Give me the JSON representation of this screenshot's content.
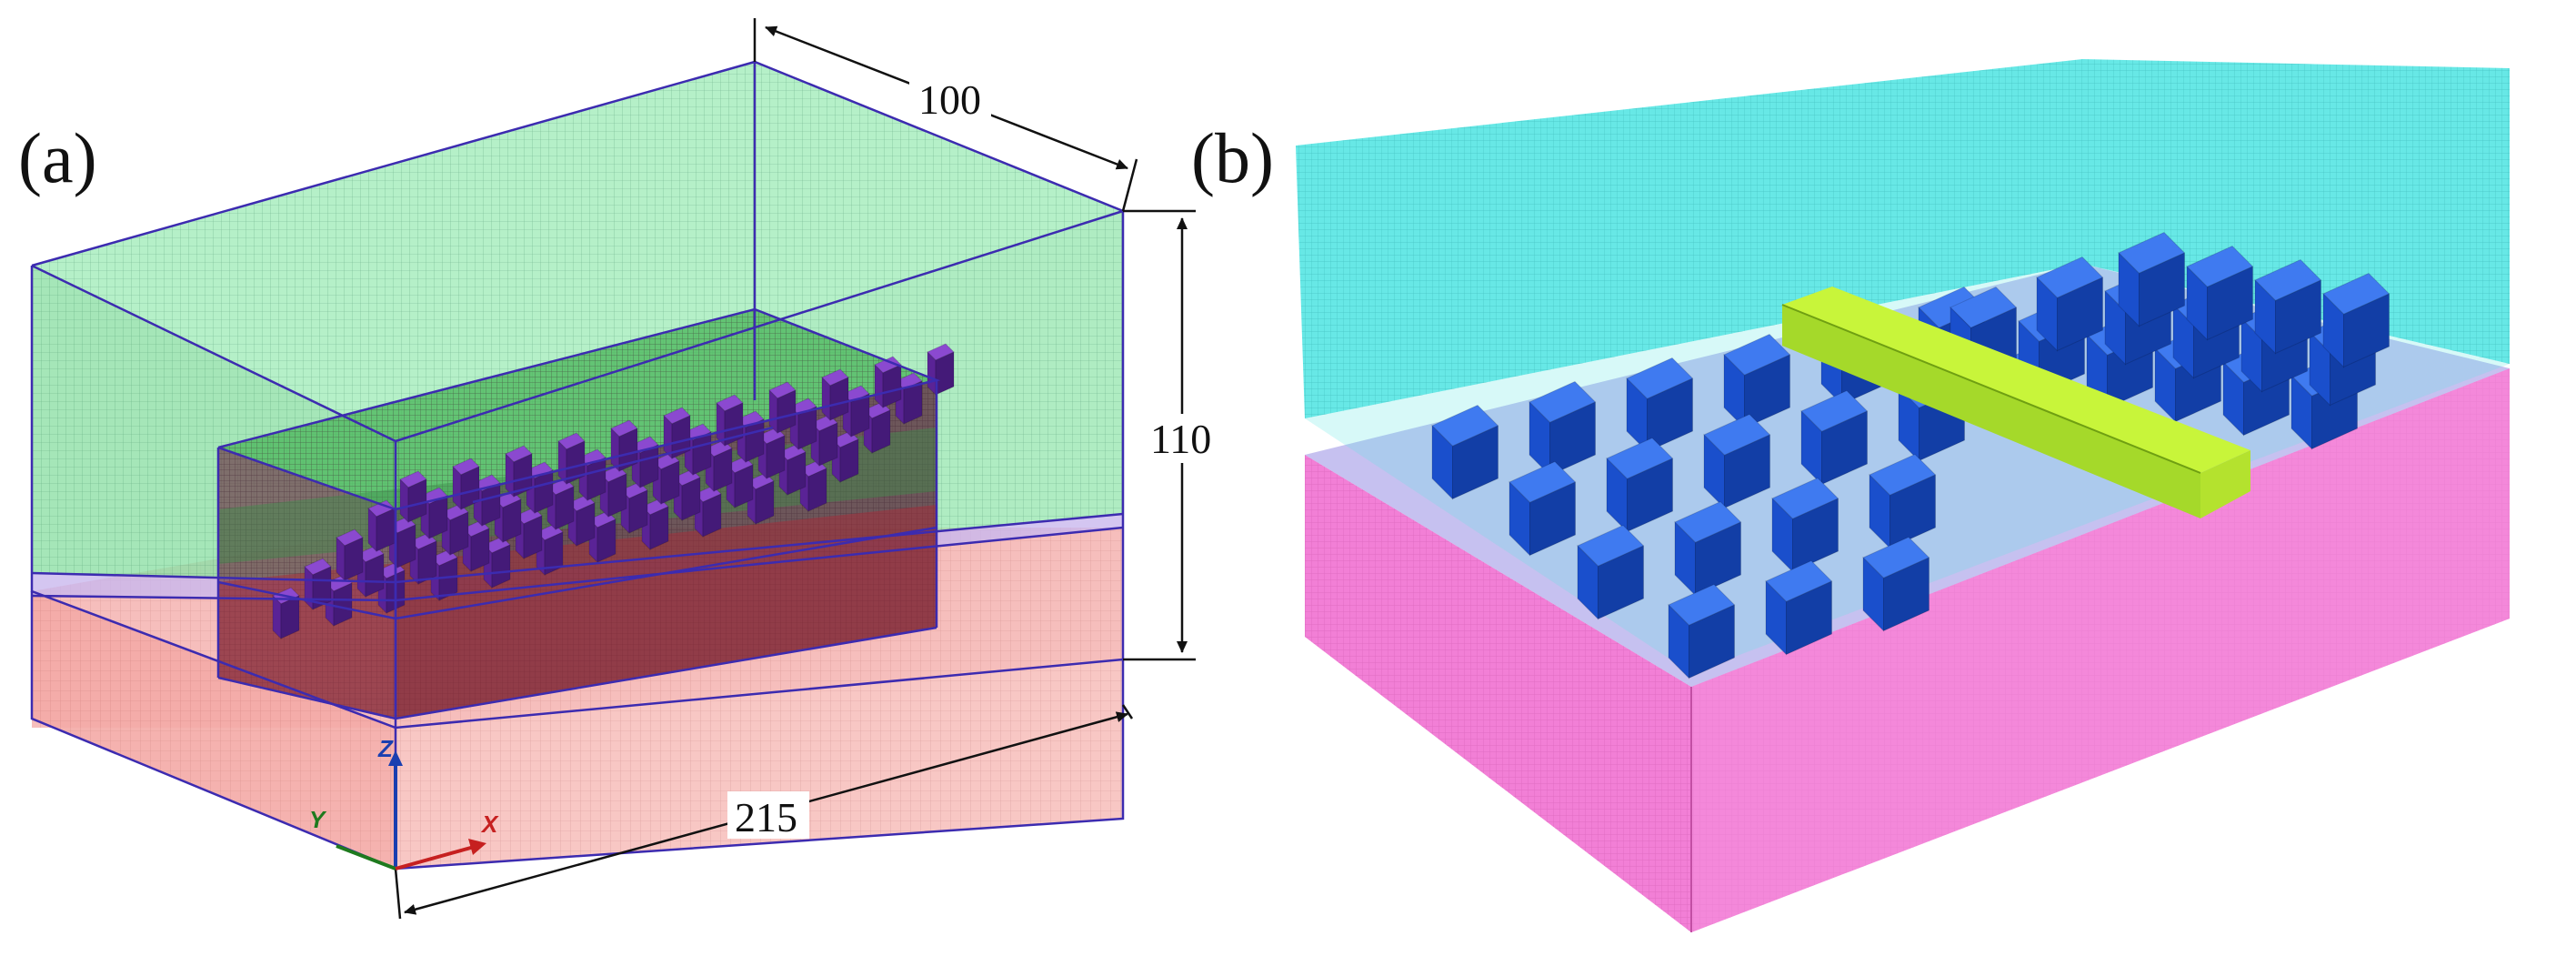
{
  "figure": {
    "panel_a": {
      "label": "(a)",
      "dimensions": {
        "depth": "100",
        "height": "110",
        "length": "215"
      },
      "axes": {
        "z": "Z",
        "y": "Y",
        "x": "X"
      }
    },
    "panel_b": {
      "label": "(b)"
    }
  },
  "colors": {
    "fluid_green": "#8fe6a8",
    "solid_red": "#f5b3b0",
    "mesh_edge": "#3c2bb0",
    "inner_fluid": "#5cc36a",
    "pillar_purple": "#6a2aa8",
    "cyan_domain": "#5fe7e5",
    "magenta_domain": "#f27fd6",
    "pillar_blue": "#1f5fdc",
    "bar_yellow": "#c8f53a",
    "axis_z": "#1a3fb0",
    "axis_y": "#1e7a1e",
    "axis_x": "#c62020"
  }
}
